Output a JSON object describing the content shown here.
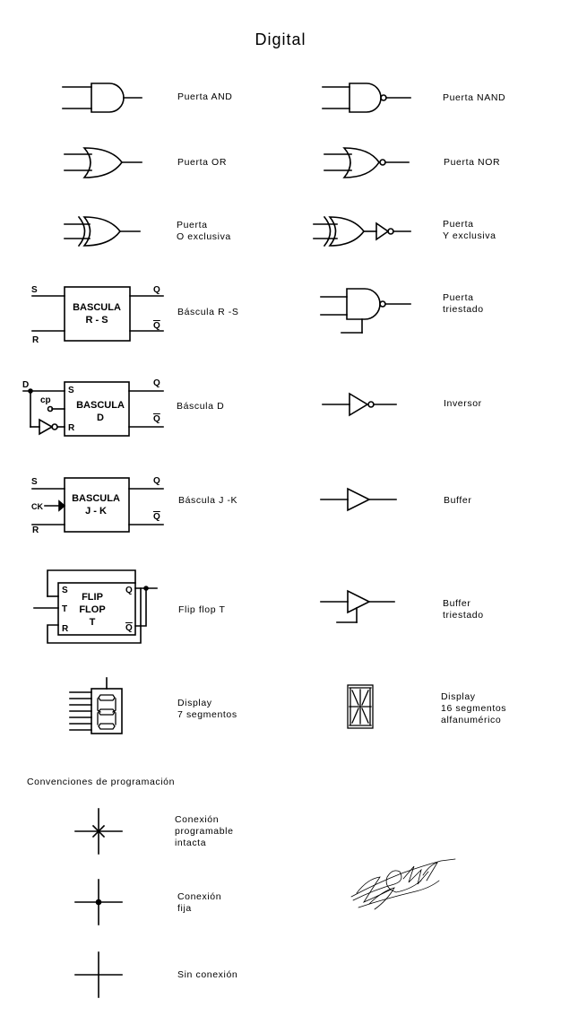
{
  "title": "Digital",
  "symbols": {
    "and": [
      "Puerta AND"
    ],
    "nand": [
      "Puerta NAND"
    ],
    "or": [
      "Puerta OR"
    ],
    "nor": [
      "Puerta  NOR"
    ],
    "xor": [
      "Puerta",
      "O exclusiva"
    ],
    "xnor": [
      "Puerta",
      "Y exclusiva"
    ],
    "rs": [
      "Báscula  R -S"
    ],
    "tristate_gate": [
      "Puerta",
      "triestado"
    ],
    "d": [
      "Báscula  D"
    ],
    "inverter": [
      "Inversor"
    ],
    "jk": [
      "Báscula  J -K"
    ],
    "buffer": [
      "Buffer"
    ],
    "flipflop_t": [
      "Flip flop  T"
    ],
    "buffer_tristate": [
      "Buffer",
      "triestado"
    ],
    "display7": [
      "Display",
      "7 segmentos"
    ],
    "display16": [
      "Display",
      "16 segmentos",
      "alfanumérico"
    ]
  },
  "block_text": {
    "rs": [
      "BASCULA",
      "R - S"
    ],
    "d": [
      "BASCULA",
      "D"
    ],
    "jk": [
      "BASCULA",
      "J - K"
    ],
    "ft": [
      "FLIP",
      "FLOP",
      "T"
    ]
  },
  "pins": {
    "S": "S",
    "R": "R",
    "Q": "Q",
    "Qn": "Q",
    "D": "D",
    "cp": "cp",
    "CK": "CK",
    "T": "T"
  },
  "conventions": {
    "heading": "Convenciones de programación",
    "intact": [
      "Conexión",
      "programable",
      "intacta"
    ],
    "fixed": [
      "Conexión",
      "fija"
    ],
    "none": [
      "Sin conexión"
    ]
  }
}
